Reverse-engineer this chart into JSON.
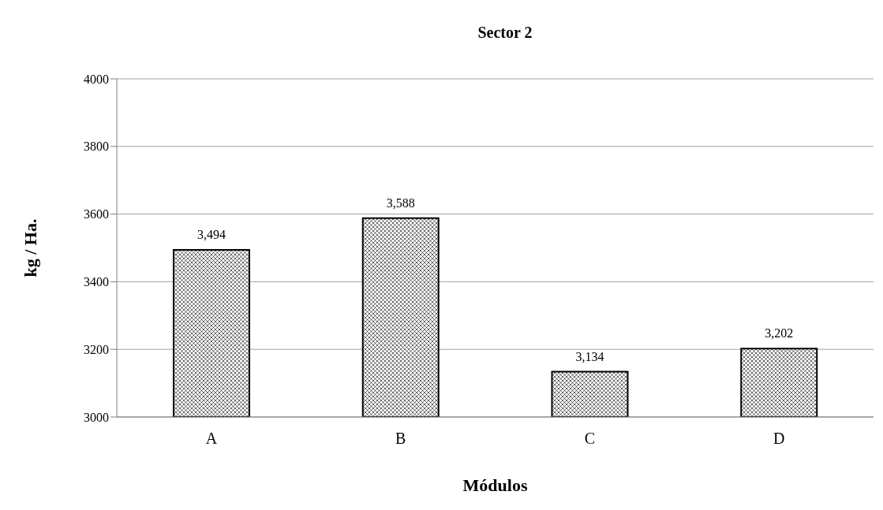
{
  "chart_data": {
    "type": "bar",
    "title": "Sector 2",
    "xlabel": "Módulos",
    "ylabel": "kg / Ha.",
    "categories": [
      "A",
      "B",
      "C",
      "D"
    ],
    "values": [
      3494,
      3588,
      3134,
      3202
    ],
    "value_labels": [
      "3,494",
      "3,588",
      "3,134",
      "3,202"
    ],
    "color": "#000000",
    "ylim": [
      3000,
      4000
    ],
    "yticks": [
      3000,
      3200,
      3400,
      3600,
      3800,
      4000
    ],
    "grid": "y"
  }
}
